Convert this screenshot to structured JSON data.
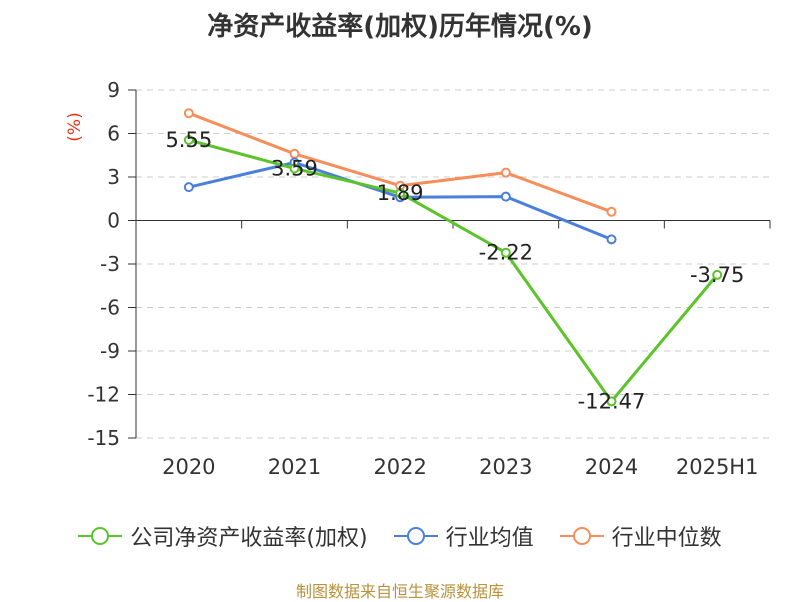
{
  "title": "净资产收益率(加权)历年情况(%)",
  "source": "制图数据来自恒生聚源数据库",
  "colors": {
    "company": "#5cc32a",
    "industry_avg": "#4a7fdc",
    "industry_median": "#f58e5a"
  },
  "chart_data": {
    "type": "line",
    "title": "净资产收益率(加权)历年情况(%)",
    "xlabel": "",
    "ylabel": "(%)",
    "ylim": [
      -15,
      9
    ],
    "yticks": [
      9,
      6,
      3,
      0,
      -3,
      -6,
      -9,
      -12,
      -15
    ],
    "categories": [
      "2020",
      "2021",
      "2022",
      "2023",
      "2024",
      "2025H1"
    ],
    "grid": true,
    "legend_position": "bottom",
    "series": [
      {
        "name": "公司净资产收益率(加权)",
        "color": "#5cc32a",
        "values": [
          5.55,
          3.59,
          1.89,
          -2.22,
          -12.47,
          -3.75
        ],
        "labels": [
          "5.55",
          "3.59",
          "1.89",
          "-2.22",
          "-12.47",
          "-3.75"
        ]
      },
      {
        "name": "行业均值",
        "color": "#4a7fdc",
        "values": [
          2.3,
          4.0,
          1.6,
          1.65,
          -1.3,
          null
        ]
      },
      {
        "name": "行业中位数",
        "color": "#f58e5a",
        "values": [
          7.4,
          4.6,
          2.4,
          3.3,
          0.6,
          null
        ]
      }
    ]
  }
}
